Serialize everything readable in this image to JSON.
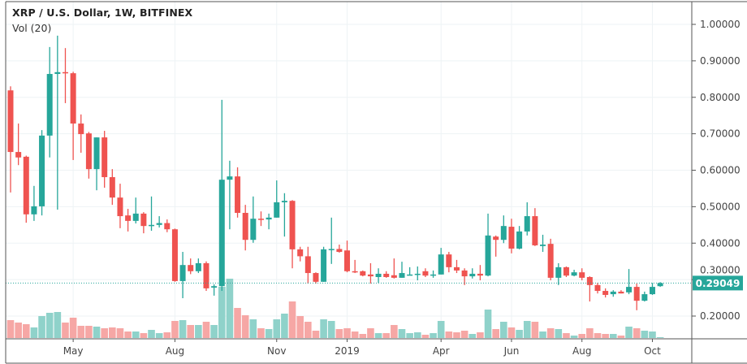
{
  "header": {
    "title": "XRP / U.S. Dollar, 1W, BITFINEX",
    "volume_indicator": "Vol (20)"
  },
  "colors": {
    "up": "#26a69a",
    "down": "#ef5350",
    "up_volume": "#8fd2ca",
    "down_volume": "#f6a7a5",
    "grid": "#eef3f5",
    "price_line": "#26a69a"
  },
  "chart_data": {
    "type": "candlestick",
    "title": "XRP / U.S. Dollar, 1W, BITFINEX",
    "interval": "1W",
    "ylim": [
      0.14,
      1.04
    ],
    "y_ticks": [
      "1.00000",
      "0.90000",
      "0.80000",
      "0.70000",
      "0.60000",
      "0.50000",
      "0.40000",
      "0.30000",
      "0.20000"
    ],
    "y_tick_values": [
      1.0,
      0.9,
      0.8,
      0.7,
      0.6,
      0.5,
      0.4,
      0.3,
      0.2
    ],
    "x_ticks": [
      {
        "label": "May",
        "index": 8
      },
      {
        "label": "Aug",
        "index": 21
      },
      {
        "label": "Nov",
        "index": 34
      },
      {
        "label": "2019",
        "index": 43
      },
      {
        "label": "Apr",
        "index": 55
      },
      {
        "label": "Jun",
        "index": 64
      },
      {
        "label": "Aug",
        "index": 73
      },
      {
        "label": "Oct",
        "index": 82
      }
    ],
    "last_price": 0.29049,
    "last_price_label": "0.29049",
    "ohlc_columns": [
      "open",
      "high",
      "low",
      "close"
    ],
    "ohlc": [
      [
        0.819,
        0.83,
        0.539,
        0.65
      ],
      [
        0.65,
        0.728,
        0.614,
        0.635
      ],
      [
        0.637,
        0.64,
        0.456,
        0.479
      ],
      [
        0.479,
        0.557,
        0.461,
        0.501
      ],
      [
        0.501,
        0.71,
        0.476,
        0.695
      ],
      [
        0.695,
        0.938,
        0.635,
        0.864
      ],
      [
        0.864,
        0.969,
        0.492,
        0.869
      ],
      [
        0.869,
        0.935,
        0.784,
        0.866
      ],
      [
        0.866,
        0.87,
        0.628,
        0.728
      ],
      [
        0.728,
        0.753,
        0.648,
        0.699
      ],
      [
        0.701,
        0.705,
        0.577,
        0.603
      ],
      [
        0.603,
        0.69,
        0.545,
        0.69
      ],
      [
        0.69,
        0.708,
        0.552,
        0.581
      ],
      [
        0.581,
        0.603,
        0.505,
        0.525
      ],
      [
        0.525,
        0.563,
        0.441,
        0.474
      ],
      [
        0.476,
        0.494,
        0.432,
        0.461
      ],
      [
        0.461,
        0.525,
        0.454,
        0.481
      ],
      [
        0.481,
        0.485,
        0.427,
        0.447
      ],
      [
        0.447,
        0.528,
        0.434,
        0.45
      ],
      [
        0.45,
        0.474,
        0.443,
        0.455
      ],
      [
        0.455,
        0.465,
        0.43,
        0.438
      ],
      [
        0.438,
        0.44,
        0.294,
        0.296
      ],
      [
        0.296,
        0.376,
        0.249,
        0.34
      ],
      [
        0.34,
        0.358,
        0.315,
        0.323
      ],
      [
        0.323,
        0.358,
        0.318,
        0.345
      ],
      [
        0.345,
        0.35,
        0.269,
        0.276
      ],
      [
        0.278,
        0.287,
        0.256,
        0.282
      ],
      [
        0.282,
        0.793,
        0.269,
        0.574
      ],
      [
        0.574,
        0.626,
        0.438,
        0.583
      ],
      [
        0.583,
        0.608,
        0.47,
        0.483
      ],
      [
        0.483,
        0.505,
        0.38,
        0.409
      ],
      [
        0.409,
        0.528,
        0.401,
        0.467
      ],
      [
        0.467,
        0.487,
        0.447,
        0.465
      ],
      [
        0.465,
        0.481,
        0.438,
        0.47
      ],
      [
        0.47,
        0.572,
        0.47,
        0.512
      ],
      [
        0.512,
        0.537,
        0.418,
        0.516
      ],
      [
        0.516,
        0.518,
        0.331,
        0.383
      ],
      [
        0.383,
        0.39,
        0.35,
        0.364
      ],
      [
        0.364,
        0.39,
        0.289,
        0.318
      ],
      [
        0.318,
        0.32,
        0.289,
        0.294
      ],
      [
        0.294,
        0.39,
        0.294,
        0.383
      ],
      [
        0.382,
        0.47,
        0.343,
        0.384
      ],
      [
        0.384,
        0.396,
        0.374,
        0.376
      ],
      [
        0.38,
        0.407,
        0.32,
        0.323
      ],
      [
        0.323,
        0.354,
        0.318,
        0.321
      ],
      [
        0.323,
        0.325,
        0.309,
        0.311
      ],
      [
        0.314,
        0.345,
        0.289,
        0.309
      ],
      [
        0.307,
        0.331,
        0.291,
        0.316
      ],
      [
        0.316,
        0.323,
        0.305,
        0.307
      ],
      [
        0.312,
        0.358,
        0.303,
        0.305
      ],
      [
        0.305,
        0.349,
        0.305,
        0.318
      ],
      [
        0.312,
        0.334,
        0.312,
        0.314
      ],
      [
        0.314,
        0.336,
        0.298,
        0.316
      ],
      [
        0.323,
        0.331,
        0.307,
        0.311
      ],
      [
        0.312,
        0.325,
        0.305,
        0.314
      ],
      [
        0.314,
        0.387,
        0.314,
        0.369
      ],
      [
        0.369,
        0.376,
        0.32,
        0.334
      ],
      [
        0.334,
        0.354,
        0.318,
        0.325
      ],
      [
        0.325,
        0.331,
        0.285,
        0.309
      ],
      [
        0.309,
        0.331,
        0.303,
        0.316
      ],
      [
        0.316,
        0.34,
        0.298,
        0.311
      ],
      [
        0.311,
        0.481,
        0.309,
        0.421
      ],
      [
        0.418,
        0.421,
        0.363,
        0.409
      ],
      [
        0.409,
        0.476,
        0.4,
        0.447
      ],
      [
        0.445,
        0.467,
        0.372,
        0.385
      ],
      [
        0.385,
        0.447,
        0.383,
        0.432
      ],
      [
        0.432,
        0.512,
        0.421,
        0.474
      ],
      [
        0.474,
        0.496,
        0.392,
        0.394
      ],
      [
        0.392,
        0.423,
        0.376,
        0.396
      ],
      [
        0.398,
        0.412,
        0.298,
        0.305
      ],
      [
        0.305,
        0.345,
        0.285,
        0.334
      ],
      [
        0.334,
        0.336,
        0.307,
        0.311
      ],
      [
        0.311,
        0.327,
        0.309,
        0.32
      ],
      [
        0.32,
        0.331,
        0.298,
        0.305
      ],
      [
        0.307,
        0.309,
        0.24,
        0.285
      ],
      [
        0.285,
        0.291,
        0.262,
        0.269
      ],
      [
        0.269,
        0.276,
        0.251,
        0.258
      ],
      [
        0.26,
        0.271,
        0.253,
        0.267
      ],
      [
        0.267,
        0.271,
        0.262,
        0.262
      ],
      [
        0.265,
        0.329,
        0.26,
        0.28
      ],
      [
        0.28,
        0.289,
        0.216,
        0.242
      ],
      [
        0.242,
        0.267,
        0.24,
        0.26
      ],
      [
        0.26,
        0.291,
        0.258,
        0.28
      ],
      [
        0.282,
        0.293,
        0.28,
        0.29049
      ]
    ],
    "volume_relative": [
      22,
      19,
      17,
      13,
      27,
      31,
      32,
      19,
      25,
      15,
      15,
      14,
      12,
      13,
      12,
      8,
      8,
      6,
      10,
      6,
      7,
      21,
      22,
      16,
      16,
      20,
      16,
      63,
      73,
      37,
      28,
      23,
      12,
      11,
      23,
      30,
      45,
      27,
      20,
      9,
      23,
      21,
      11,
      12,
      8,
      5,
      12,
      6,
      6,
      16,
      11,
      6,
      7,
      4,
      6,
      21,
      8,
      7,
      9,
      5,
      7,
      35,
      11,
      20,
      13,
      10,
      21,
      20,
      8,
      12,
      11,
      6,
      3,
      5,
      12,
      6,
      5,
      5,
      3,
      14,
      12,
      9,
      8,
      1
    ]
  }
}
